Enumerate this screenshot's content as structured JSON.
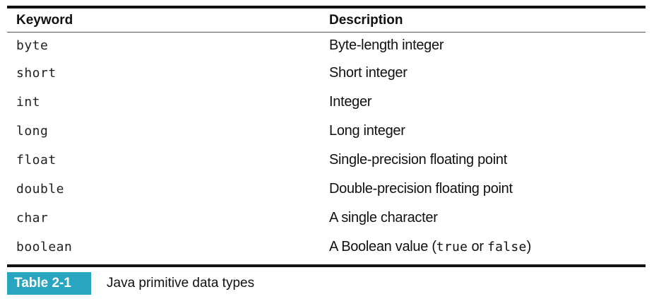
{
  "table": {
    "headers": {
      "keyword": "Keyword",
      "description": "Description"
    },
    "rows": [
      {
        "keyword": "byte",
        "description": "Byte-length integer"
      },
      {
        "keyword": "short",
        "description": "Short integer"
      },
      {
        "keyword": "int",
        "description": "Integer"
      },
      {
        "keyword": "long",
        "description": "Long integer"
      },
      {
        "keyword": "float",
        "description": "Single-precision floating point"
      },
      {
        "keyword": "double",
        "description": "Double-precision floating point"
      },
      {
        "keyword": "char",
        "description": "A single character"
      },
      {
        "keyword": "boolean",
        "description_parts": {
          "before": "A Boolean value (",
          "code1": "true",
          "middle": " or ",
          "code2": "false",
          "after": ")"
        }
      }
    ]
  },
  "caption": {
    "label": "Table 2-1",
    "text": "Java primitive data types",
    "label_color": "#2aa5bf"
  }
}
